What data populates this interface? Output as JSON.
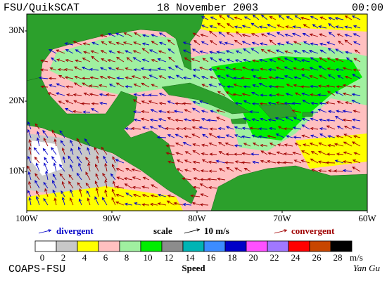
{
  "header": {
    "product": "FSU/QuikSCAT",
    "date": "18 November 2003",
    "time": "00:00"
  },
  "map": {
    "lon_lim": [
      -100,
      -60
    ],
    "lat_lim": [
      4.4,
      32.4
    ],
    "lat_ticks": [
      {
        "value": 30,
        "label": "30N"
      },
      {
        "value": 20,
        "label": "20N"
      },
      {
        "value": 10,
        "label": "10N"
      }
    ],
    "lon_ticks": [
      {
        "value": -100,
        "label": "100W"
      },
      {
        "value": -90,
        "label": "90W"
      },
      {
        "value": -80,
        "label": "80W"
      },
      {
        "value": -70,
        "label": "70W"
      },
      {
        "value": -60,
        "label": "60W"
      }
    ]
  },
  "legend": {
    "divergent": "divergent",
    "scale": "scale",
    "scale_value": "10 m/s",
    "convergent": "convergent"
  },
  "colorbar": {
    "ticks": [
      0,
      2,
      4,
      6,
      8,
      10,
      12,
      14,
      16,
      18,
      20,
      22,
      24,
      26,
      28
    ],
    "unit": "m/s",
    "label": "Speed",
    "colors": [
      "#ffffff",
      "#c8c8c8",
      "#ffff00",
      "#ffc0c0",
      "#a0f0a0",
      "#00ee00",
      "#8c8c8c",
      "#00b4b4",
      "#3c8cff",
      "#0000c8",
      "#ff50ff",
      "#a078ff",
      "#ff0000",
      "#c84600",
      "#000000"
    ]
  },
  "footer": {
    "credit": "COAPS-FSU",
    "author": "Yan Gu"
  }
}
